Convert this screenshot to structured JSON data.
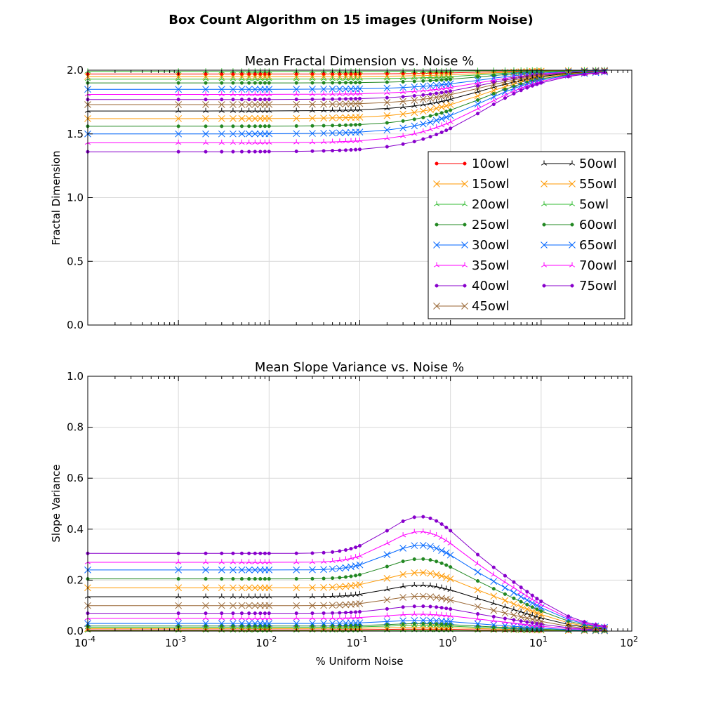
{
  "figure": {
    "suptitle": "Box Count Algorithm on 15 images (Uniform Noise)"
  },
  "chart_data": [
    {
      "type": "line",
      "title": "Mean Fractal Dimension vs. Noise %",
      "xlabel": "",
      "ylabel": "Fractal Dimension",
      "xscale": "log",
      "xlim": [
        0.0001,
        100
      ],
      "ylim": [
        0.0,
        2.0
      ],
      "xticks": [
        0.0001,
        0.001,
        0.01,
        0.1,
        1,
        10,
        100
      ],
      "xtick_labels": [
        "10^-4",
        "10^-3",
        "10^-2",
        "10^-1",
        "10^0",
        "10^1",
        "10^2"
      ],
      "yticks": [
        0.0,
        0.5,
        1.0,
        1.5,
        2.0
      ],
      "ytick_labels": [
        "0.0",
        "0.5",
        "1.0",
        "1.5",
        "2.0"
      ],
      "grid": true,
      "legend": {
        "placement": "center-right",
        "columns": 2
      },
      "noise_x": [
        0.0001,
        0.001,
        0.002,
        0.003,
        0.004,
        0.005,
        0.006,
        0.007,
        0.008,
        0.009,
        0.01,
        0.02,
        0.03,
        0.04,
        0.05,
        0.06,
        0.07,
        0.08,
        0.09,
        0.1,
        0.2,
        0.3,
        0.4,
        0.5,
        0.6,
        0.7,
        0.8,
        0.9,
        1,
        2,
        3,
        4,
        5,
        6,
        7,
        8,
        9,
        10,
        20,
        30,
        40,
        50
      ],
      "series": [
        {
          "name": "10owl",
          "color": "#ff0000",
          "marker": "dot",
          "base": 1.97,
          "bump": 0
        },
        {
          "name": "15owl",
          "color": "#ff9900",
          "marker": "x",
          "base": 1.95,
          "bump": 0
        },
        {
          "name": "20owl",
          "color": "#33bb33",
          "marker": "tri",
          "base": 1.93,
          "bump": 0
        },
        {
          "name": "25owl",
          "color": "#228822",
          "marker": "dot",
          "base": 1.9,
          "bump": 0
        },
        {
          "name": "30owl",
          "color": "#0066ff",
          "marker": "x",
          "base": 1.85,
          "bump": 0
        },
        {
          "name": "35owl",
          "color": "#ff00ff",
          "marker": "tri",
          "base": 1.81,
          "bump": 0
        },
        {
          "name": "40owl",
          "color": "#8800cc",
          "marker": "dot",
          "base": 1.77,
          "bump": 0
        },
        {
          "name": "45owl",
          "color": "#996633",
          "marker": "x",
          "base": 1.73,
          "bump": 0
        },
        {
          "name": "50owl",
          "color": "#000000",
          "marker": "tri",
          "base": 1.68,
          "bump": 0
        },
        {
          "name": "55owl",
          "color": "#ff9900",
          "marker": "x",
          "base": 1.62,
          "bump": 0
        },
        {
          "name": "5owl",
          "color": "#33bb33",
          "marker": "tri",
          "base": 1.99,
          "bump": 0
        },
        {
          "name": "60owl",
          "color": "#228822",
          "marker": "dot",
          "base": 1.56,
          "bump": 0
        },
        {
          "name": "65owl",
          "color": "#0066ff",
          "marker": "x",
          "base": 1.5,
          "bump": 0
        },
        {
          "name": "70owl",
          "color": "#ff00ff",
          "marker": "tri",
          "base": 1.43,
          "bump": 0
        },
        {
          "name": "75owl",
          "color": "#8800cc",
          "marker": "dot",
          "base": 1.36,
          "bump": 0
        }
      ]
    },
    {
      "type": "line",
      "title": "Mean Slope Variance vs. Noise %",
      "xlabel": "% Uniform Noise",
      "ylabel": "Slope Variance",
      "xscale": "log",
      "xlim": [
        0.0001,
        100
      ],
      "ylim": [
        0.0,
        1.0
      ],
      "xticks": [
        0.0001,
        0.001,
        0.01,
        0.1,
        1,
        10,
        100
      ],
      "xtick_labels": [
        "10^-4",
        "10^-3",
        "10^-2",
        "10^-1",
        "10^0",
        "10^1",
        "10^2"
      ],
      "yticks": [
        0.0,
        0.2,
        0.4,
        0.6,
        0.8,
        1.0
      ],
      "ytick_labels": [
        "0.0",
        "0.2",
        "0.4",
        "0.6",
        "0.8",
        "1.0"
      ],
      "grid": true,
      "noise_x": [
        0.0001,
        0.001,
        0.002,
        0.003,
        0.004,
        0.005,
        0.006,
        0.007,
        0.008,
        0.009,
        0.01,
        0.02,
        0.03,
        0.04,
        0.05,
        0.06,
        0.07,
        0.08,
        0.09,
        0.1,
        0.2,
        0.3,
        0.4,
        0.5,
        0.6,
        0.7,
        0.8,
        0.9,
        1,
        2,
        3,
        4,
        5,
        6,
        7,
        8,
        9,
        10,
        20,
        30,
        40,
        50
      ],
      "series": [
        {
          "name": "10owl",
          "color": "#ff0000",
          "marker": "dot",
          "base": 0.005,
          "bump": 0.003
        },
        {
          "name": "15owl",
          "color": "#ff9900",
          "marker": "x",
          "base": 0.01,
          "bump": 0.005
        },
        {
          "name": "20owl",
          "color": "#33bb33",
          "marker": "tri",
          "base": 0.015,
          "bump": 0.008
        },
        {
          "name": "25owl",
          "color": "#228822",
          "marker": "dot",
          "base": 0.02,
          "bump": 0.01
        },
        {
          "name": "30owl",
          "color": "#0066ff",
          "marker": "x",
          "base": 0.03,
          "bump": 0.013
        },
        {
          "name": "35owl",
          "color": "#ff00ff",
          "marker": "tri",
          "base": 0.05,
          "bump": 0.018
        },
        {
          "name": "40owl",
          "color": "#8800cc",
          "marker": "dot",
          "base": 0.07,
          "bump": 0.03
        },
        {
          "name": "45owl",
          "color": "#996633",
          "marker": "x",
          "base": 0.1,
          "bump": 0.04
        },
        {
          "name": "50owl",
          "color": "#000000",
          "marker": "tri",
          "base": 0.135,
          "bump": 0.05
        },
        {
          "name": "55owl",
          "color": "#ff9900",
          "marker": "x",
          "base": 0.17,
          "bump": 0.065
        },
        {
          "name": "5owl",
          "color": "#33bb33",
          "marker": "tri",
          "base": 0.002,
          "bump": 0.001
        },
        {
          "name": "60owl",
          "color": "#228822",
          "marker": "dot",
          "base": 0.205,
          "bump": 0.085
        },
        {
          "name": "65owl",
          "color": "#0066ff",
          "marker": "x",
          "base": 0.24,
          "bump": 0.105
        },
        {
          "name": "70owl",
          "color": "#ff00ff",
          "marker": "tri",
          "base": 0.27,
          "bump": 0.13
        },
        {
          "name": "75owl",
          "color": "#8800cc",
          "marker": "dot",
          "base": 0.305,
          "bump": 0.155
        }
      ]
    }
  ]
}
